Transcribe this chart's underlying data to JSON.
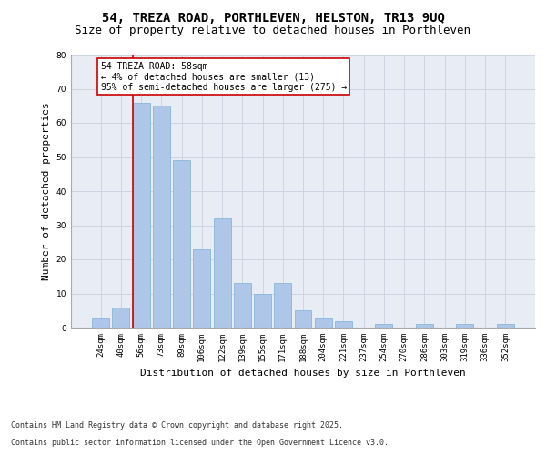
{
  "title": "54, TREZA ROAD, PORTHLEVEN, HELSTON, TR13 9UQ",
  "subtitle": "Size of property relative to detached houses in Porthleven",
  "xlabel": "Distribution of detached houses by size in Porthleven",
  "ylabel": "Number of detached properties",
  "categories": [
    "24sqm",
    "40sqm",
    "56sqm",
    "73sqm",
    "89sqm",
    "106sqm",
    "122sqm",
    "139sqm",
    "155sqm",
    "171sqm",
    "188sqm",
    "204sqm",
    "221sqm",
    "237sqm",
    "254sqm",
    "270sqm",
    "286sqm",
    "303sqm",
    "319sqm",
    "336sqm",
    "352sqm"
  ],
  "values": [
    3,
    6,
    66,
    65,
    49,
    23,
    32,
    13,
    10,
    13,
    5,
    3,
    2,
    0,
    1,
    0,
    1,
    0,
    1,
    0,
    1
  ],
  "bar_color": "#aec6e8",
  "bar_edge_color": "#7bafd4",
  "vline_x_index": 2,
  "vline_color": "#cc0000",
  "annotation_text": "54 TREZA ROAD: 58sqm\n← 4% of detached houses are smaller (13)\n95% of semi-detached houses are larger (275) →",
  "annotation_box_color": "#ffffff",
  "annotation_box_edge_color": "#cc0000",
  "ylim": [
    0,
    80
  ],
  "yticks": [
    0,
    10,
    20,
    30,
    40,
    50,
    60,
    70,
    80
  ],
  "grid_color": "#cdd5e3",
  "background_color": "#e8edf5",
  "footer_line1": "Contains HM Land Registry data © Crown copyright and database right 2025.",
  "footer_line2": "Contains public sector information licensed under the Open Government Licence v3.0.",
  "title_fontsize": 10,
  "subtitle_fontsize": 9,
  "tick_fontsize": 6.5,
  "ylabel_fontsize": 8,
  "xlabel_fontsize": 8,
  "annotation_fontsize": 7,
  "footer_fontsize": 6
}
